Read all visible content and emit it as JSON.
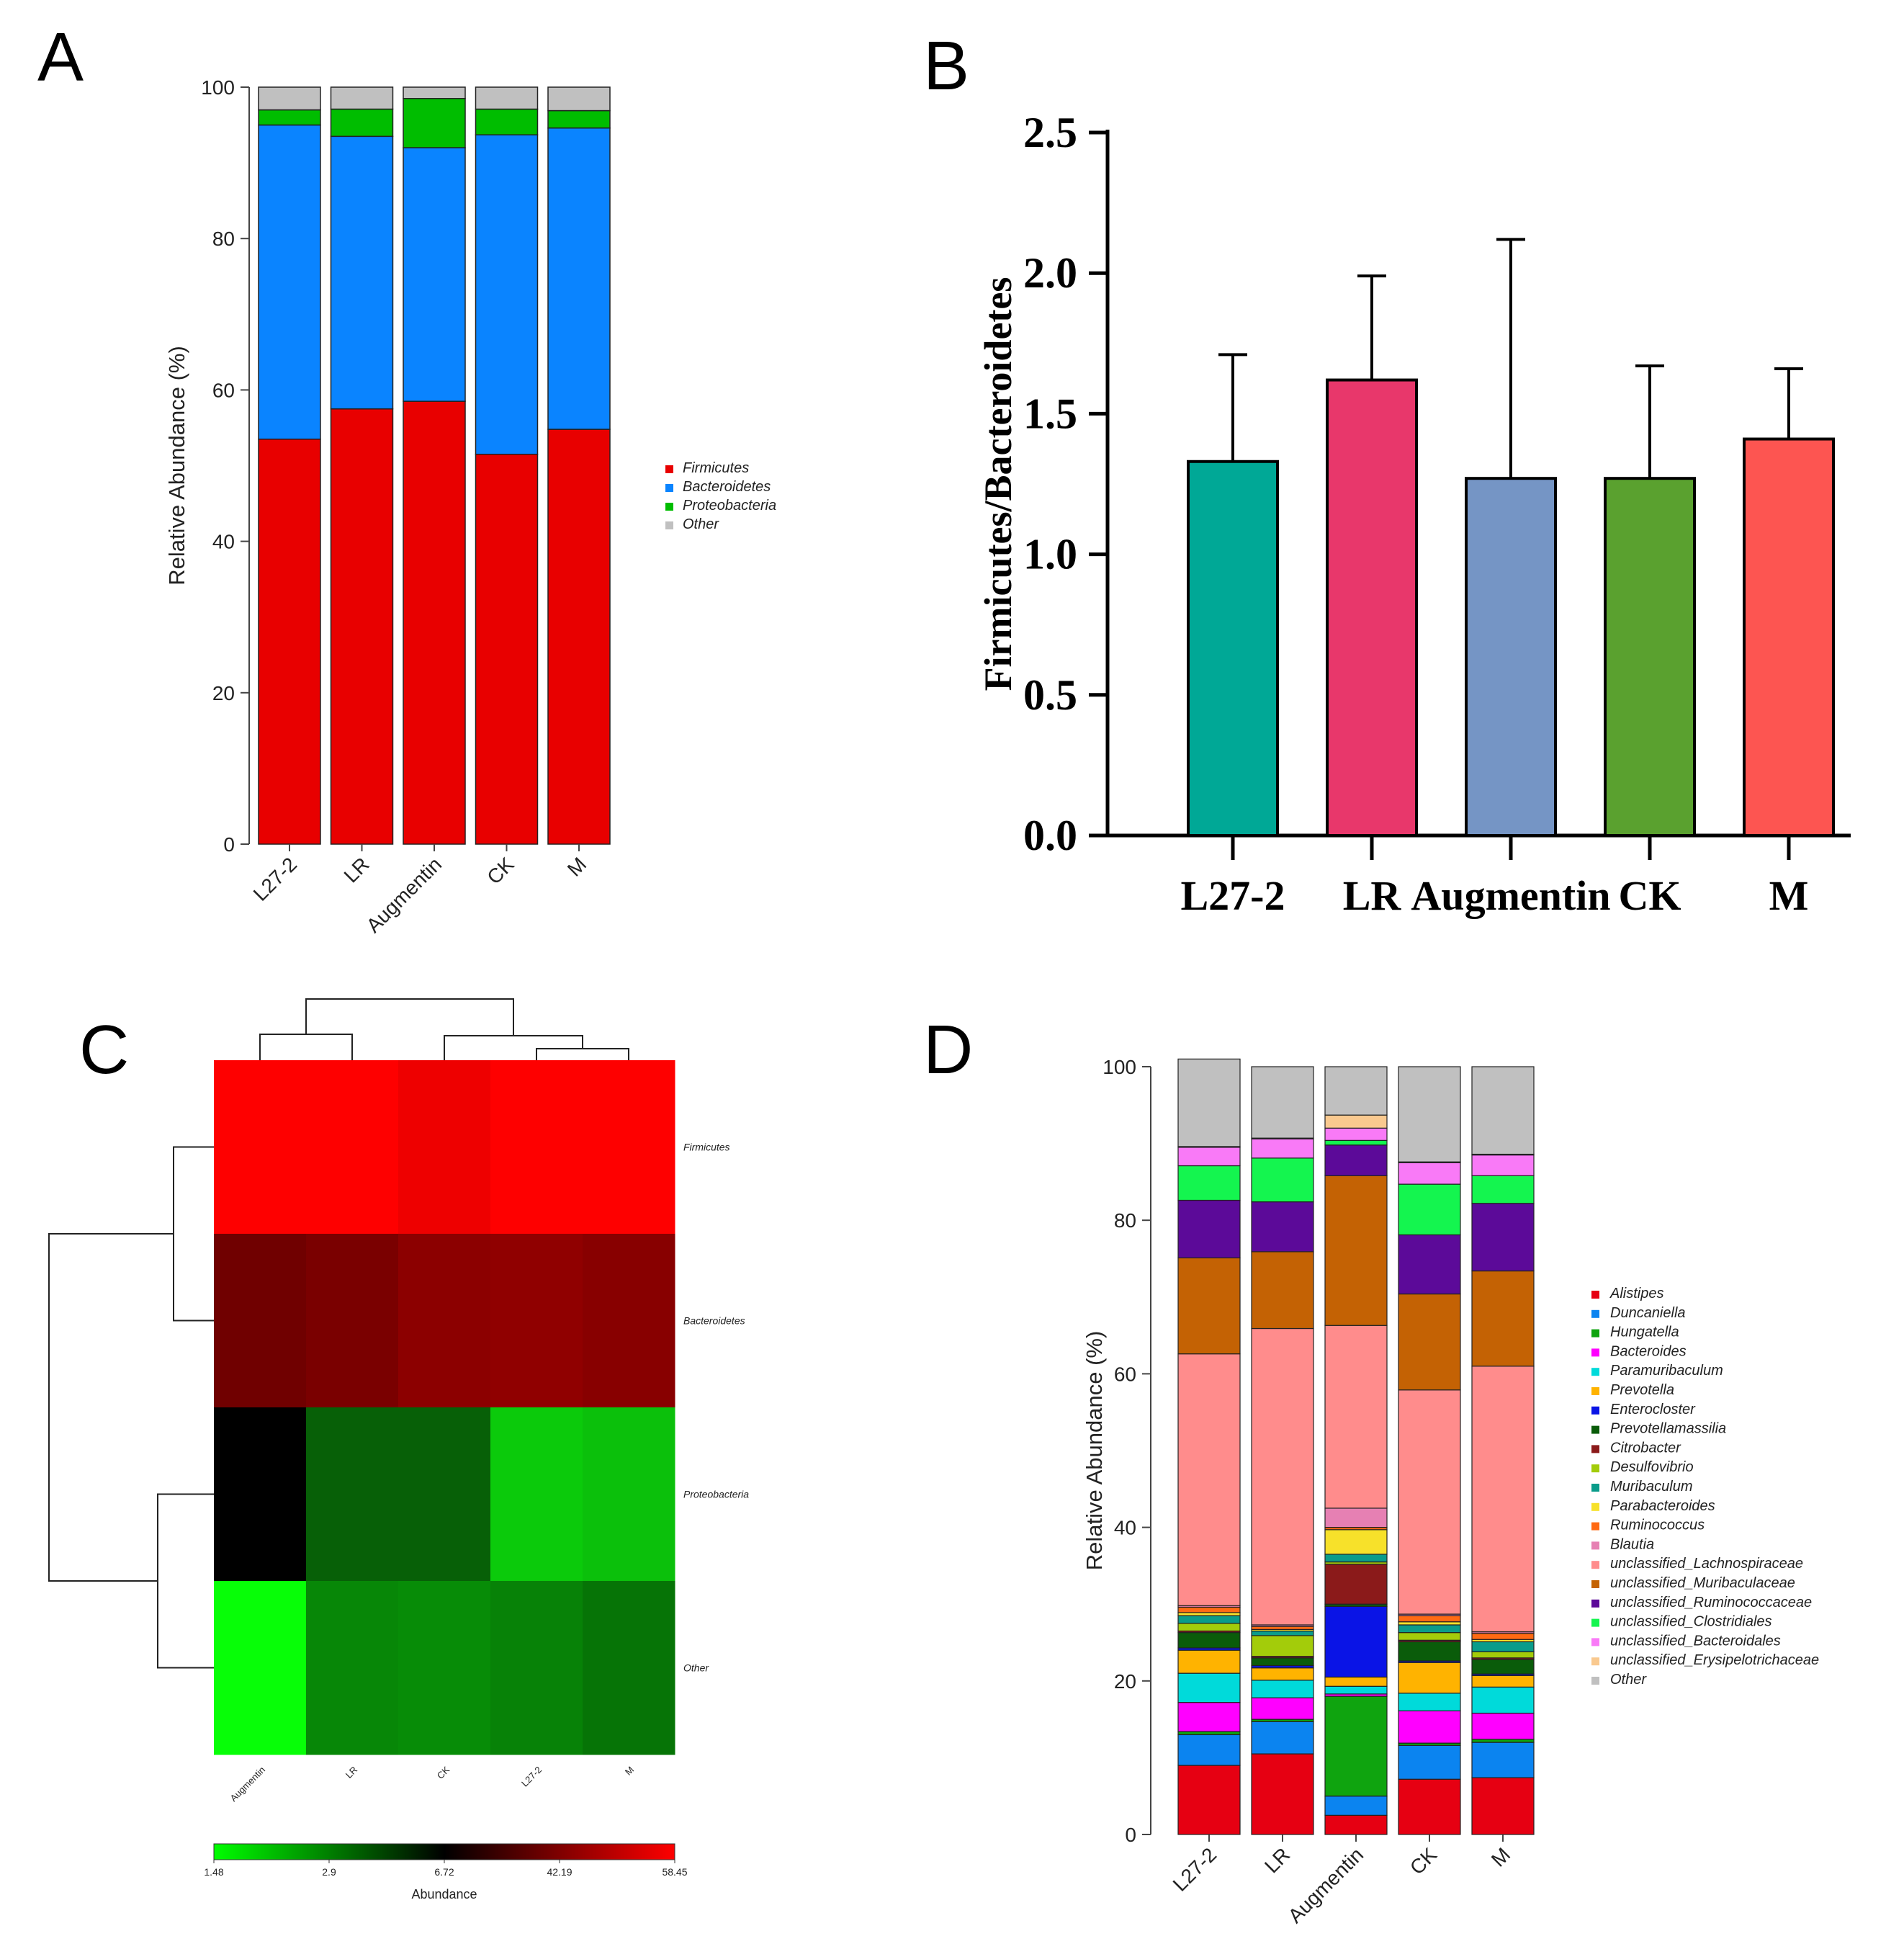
{
  "panels": {
    "A": "A",
    "B": "B",
    "C": "C",
    "D": "D"
  },
  "chart_data": [
    {
      "panel": "A",
      "type": "bar",
      "stacked": true,
      "categories": [
        "L27-2",
        "LR",
        "Augmentin",
        "CK",
        "M"
      ],
      "ylabel": "Relative Abundance (%)",
      "xlabel": "",
      "ylim": [
        0,
        100
      ],
      "yticks": [
        0,
        20,
        40,
        60,
        80,
        100
      ],
      "legend_position": "right",
      "series": [
        {
          "name": "Firmicutes",
          "color": "#e80000",
          "values": [
            53.5,
            57.5,
            58.5,
            51.5,
            54.8
          ]
        },
        {
          "name": "Bacteroidetes",
          "color": "#0a84ff",
          "values": [
            41.5,
            36.0,
            33.5,
            42.2,
            39.8
          ]
        },
        {
          "name": "Proteobacteria",
          "color": "#00bd00",
          "values": [
            2.0,
            3.6,
            6.5,
            3.4,
            2.3
          ]
        },
        {
          "name": "Other",
          "color": "#c0c0c0",
          "values": [
            3.0,
            2.9,
            1.5,
            2.9,
            3.1
          ]
        }
      ]
    },
    {
      "panel": "B",
      "type": "bar",
      "categories": [
        "L27-2",
        "LR",
        "Augmentin",
        "CK",
        "M"
      ],
      "values": [
        1.33,
        1.62,
        1.27,
        1.27,
        1.41
      ],
      "error_upper": [
        1.71,
        1.99,
        2.12,
        1.67,
        1.66
      ],
      "colors": [
        "#00a896",
        "#e8376b",
        "#7595c5",
        "#5aa12f",
        "#fd5551"
      ],
      "ylabel": "Firmicutes/Bacteroidetes",
      "xlabel": "",
      "ylim": [
        0,
        2.5
      ],
      "yticks": [
        "0.0",
        "0.5",
        "1.0",
        "1.5",
        "2.0",
        "2.5"
      ]
    },
    {
      "panel": "C",
      "type": "heatmap",
      "columns": [
        "Augmentin",
        "LR",
        "CK",
        "L27-2",
        "M"
      ],
      "rows": [
        "Firmicutes",
        "Bacteroidetes",
        "Proteobacteria",
        "Other"
      ],
      "cell_colors": [
        [
          "#fe0000",
          "#fe0000",
          "#ee0000",
          "#fe0000",
          "#fe0000"
        ],
        [
          "#700000",
          "#7a0000",
          "#8c0000",
          "#900000",
          "#880000"
        ],
        [
          "#000000",
          "#076007",
          "#076007",
          "#0bca0b",
          "#0bc00b"
        ],
        [
          "#07fe07",
          "#078707",
          "#078c07",
          "#078207",
          "#067406"
        ]
      ],
      "colorbar": {
        "title": "Abundance",
        "ticks": [
          "1.48",
          "2.9",
          "6.72",
          "42.19",
          "58.45"
        ],
        "colors": [
          "#00fe00",
          "#000000",
          "#fe0000"
        ]
      },
      "column_dendrogram": "((Augmentin,LR),(CK,(L27-2,M)))",
      "row_dendrogram": "((Firmicutes,Bacteroidetes),(Proteobacteria,Other))"
    },
    {
      "panel": "D",
      "type": "bar",
      "stacked": true,
      "categories": [
        "L27-2",
        "LR",
        "Augmentin",
        "CK",
        "M"
      ],
      "ylabel": "Relative Abundance (%)",
      "xlabel": "",
      "ylim": [
        0,
        100
      ],
      "yticks": [
        0,
        20,
        40,
        60,
        80,
        100
      ],
      "legend_position": "right",
      "series": [
        {
          "name": "Alistipes",
          "color": "#e60012",
          "values": [
            9.0,
            10.5,
            2.5,
            7.2,
            7.4
          ]
        },
        {
          "name": "Duncaniella",
          "color": "#0b84f0",
          "values": [
            4.0,
            4.2,
            2.5,
            4.4,
            4.6
          ]
        },
        {
          "name": "Hungatella",
          "color": "#0fa40f",
          "values": [
            0.4,
            0.3,
            13.0,
            0.3,
            0.4
          ]
        },
        {
          "name": "Bacteroides",
          "color": "#ff00ff",
          "values": [
            3.8,
            2.8,
            0.3,
            4.2,
            3.4
          ]
        },
        {
          "name": "Paramuribaculum",
          "color": "#00dada",
          "values": [
            3.8,
            2.3,
            1.0,
            2.3,
            3.4
          ]
        },
        {
          "name": "Prevotella",
          "color": "#ffb300",
          "values": [
            3.0,
            1.6,
            1.2,
            4.0,
            1.5
          ]
        },
        {
          "name": "Enterocloster",
          "color": "#0a14e6",
          "values": [
            0.3,
            0.3,
            9.2,
            0.2,
            0.2
          ]
        },
        {
          "name": "Prevotellamassilia",
          "color": "#0a5c0a",
          "values": [
            2.0,
            1.0,
            0.3,
            2.5,
            1.9
          ]
        },
        {
          "name": "Citrobacter",
          "color": "#8b1a1a",
          "values": [
            0.2,
            0.2,
            5.2,
            0.2,
            0.2
          ]
        },
        {
          "name": "Desulfovibrio",
          "color": "#a3cc0a",
          "values": [
            1.0,
            2.7,
            0.3,
            1.0,
            0.8
          ]
        },
        {
          "name": "Muribaculum",
          "color": "#0a9c8a",
          "values": [
            1.0,
            0.6,
            1.0,
            1.0,
            1.3
          ]
        },
        {
          "name": "Parabacteroides",
          "color": "#f7e12a",
          "values": [
            0.4,
            0.2,
            3.2,
            0.4,
            0.3
          ]
        },
        {
          "name": "Ruminococcus",
          "color": "#ff6a13",
          "values": [
            0.7,
            0.4,
            0.3,
            0.8,
            0.8
          ]
        },
        {
          "name": "Blautia",
          "color": "#e680b3",
          "values": [
            0.2,
            0.2,
            2.5,
            0.2,
            0.2
          ]
        },
        {
          "name": "unclassified_Lachnospiraceae",
          "color": "#ff8c8c",
          "values": [
            32.8,
            38.6,
            23.8,
            29.2,
            34.6
          ]
        },
        {
          "name": "unclassified_Muribaculaceae",
          "color": "#c46204",
          "values": [
            12.5,
            10.0,
            19.5,
            12.5,
            12.4
          ]
        },
        {
          "name": "unclassified_Ruminococcaceae",
          "color": "#5c0a99",
          "values": [
            7.5,
            6.5,
            4.0,
            7.7,
            8.8
          ]
        },
        {
          "name": "unclassified_Clostridiales",
          "color": "#14f54f",
          "values": [
            4.5,
            5.7,
            0.6,
            6.6,
            3.6
          ]
        },
        {
          "name": "unclassified_Bacteroidales",
          "color": "#f97af7",
          "values": [
            2.4,
            2.5,
            1.6,
            2.8,
            2.7
          ]
        },
        {
          "name": "unclassified_Erysipelotrichaceae",
          "color": "#f9c98f",
          "values": [
            0.1,
            0.1,
            1.7,
            0.1,
            0.1
          ]
        },
        {
          "name": "Other",
          "color": "#c0c0c0",
          "values": [
            11.4,
            9.3,
            6.3,
            12.4,
            11.4
          ]
        }
      ]
    }
  ]
}
